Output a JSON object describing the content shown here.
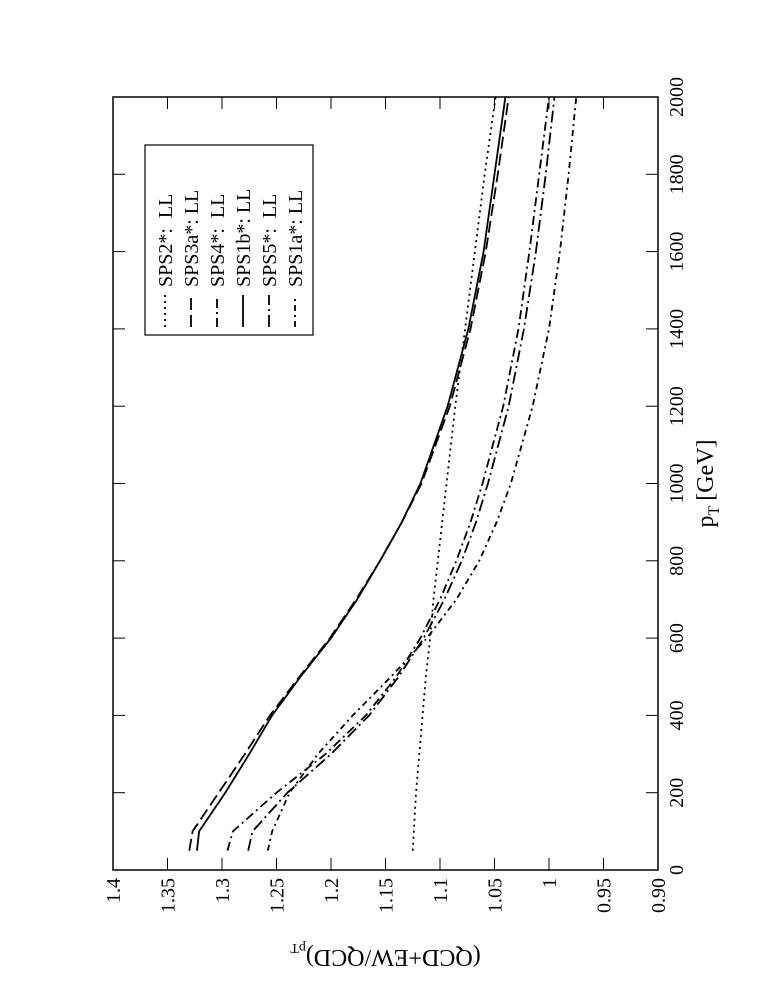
{
  "chart_data": {
    "type": "line",
    "xlabel": {
      "main": "p",
      "sub": "T",
      "unit": "[GeV]"
    },
    "ylabel": {
      "main": "(QCD+EW/QCD)",
      "sub": "pT"
    },
    "x": [
      50,
      100,
      200,
      300,
      400,
      500,
      600,
      700,
      800,
      900,
      1000,
      1200,
      1400,
      1600,
      1800,
      2000
    ],
    "series": [
      {
        "name": "SPS2*:  LL",
        "color": "#000000",
        "dash": "2,4",
        "values": [
          1.125,
          1.124,
          1.122,
          1.119,
          1.116,
          1.113,
          1.109,
          1.106,
          1.102,
          1.098,
          1.094,
          1.086,
          1.077,
          1.068,
          1.059,
          1.049
        ]
      },
      {
        "name": "SPS3a*: LL",
        "color": "#000000",
        "dash": "12,5",
        "values": [
          1.33,
          1.327,
          1.303,
          1.279,
          1.256,
          1.229,
          1.201,
          1.177,
          1.155,
          1.135,
          1.117,
          1.091,
          1.072,
          1.058,
          1.047,
          1.037
        ]
      },
      {
        "name": "SPS4*:  LL",
        "color": "#000000",
        "dash": "9,4,2,4",
        "values": [
          1.295,
          1.29,
          1.25,
          1.205,
          1.168,
          1.14,
          1.118,
          1.1,
          1.085,
          1.072,
          1.061,
          1.042,
          1.028,
          1.018,
          1.009,
          1.0
        ]
      },
      {
        "name": "SPS1b*: LL",
        "color": "#000000",
        "dash": "none",
        "values": [
          1.323,
          1.321,
          1.297,
          1.275,
          1.254,
          1.228,
          1.2,
          1.176,
          1.155,
          1.135,
          1.118,
          1.093,
          1.074,
          1.06,
          1.05,
          1.04
        ]
      },
      {
        "name": "SPS5*:  LL",
        "color": "#000000",
        "dash": "12,4,2,4",
        "values": [
          1.276,
          1.272,
          1.24,
          1.2,
          1.165,
          1.138,
          1.115,
          1.096,
          1.08,
          1.067,
          1.056,
          1.037,
          1.023,
          1.012,
          1.003,
          0.995
        ]
      },
      {
        "name": "SPS1a*: LL",
        "color": "#000000",
        "dash": "6,4,2,4",
        "values": [
          1.258,
          1.254,
          1.238,
          1.212,
          1.18,
          1.145,
          1.112,
          1.085,
          1.064,
          1.048,
          1.035,
          1.015,
          1.0,
          0.99,
          0.982,
          0.975
        ]
      }
    ],
    "xlim": [
      0,
      2000
    ],
    "xticks": [
      0,
      200,
      400,
      600,
      800,
      1000,
      1200,
      1400,
      1600,
      1800,
      2000
    ],
    "ylim": [
      0.9,
      1.4
    ],
    "yticks": [
      {
        "value": 0.9,
        "label": "0.90"
      },
      0.95,
      1,
      1.05,
      1.1,
      1.15,
      1.2,
      1.25,
      1.3,
      1.35,
      1.4
    ],
    "legend": "upper right"
  }
}
